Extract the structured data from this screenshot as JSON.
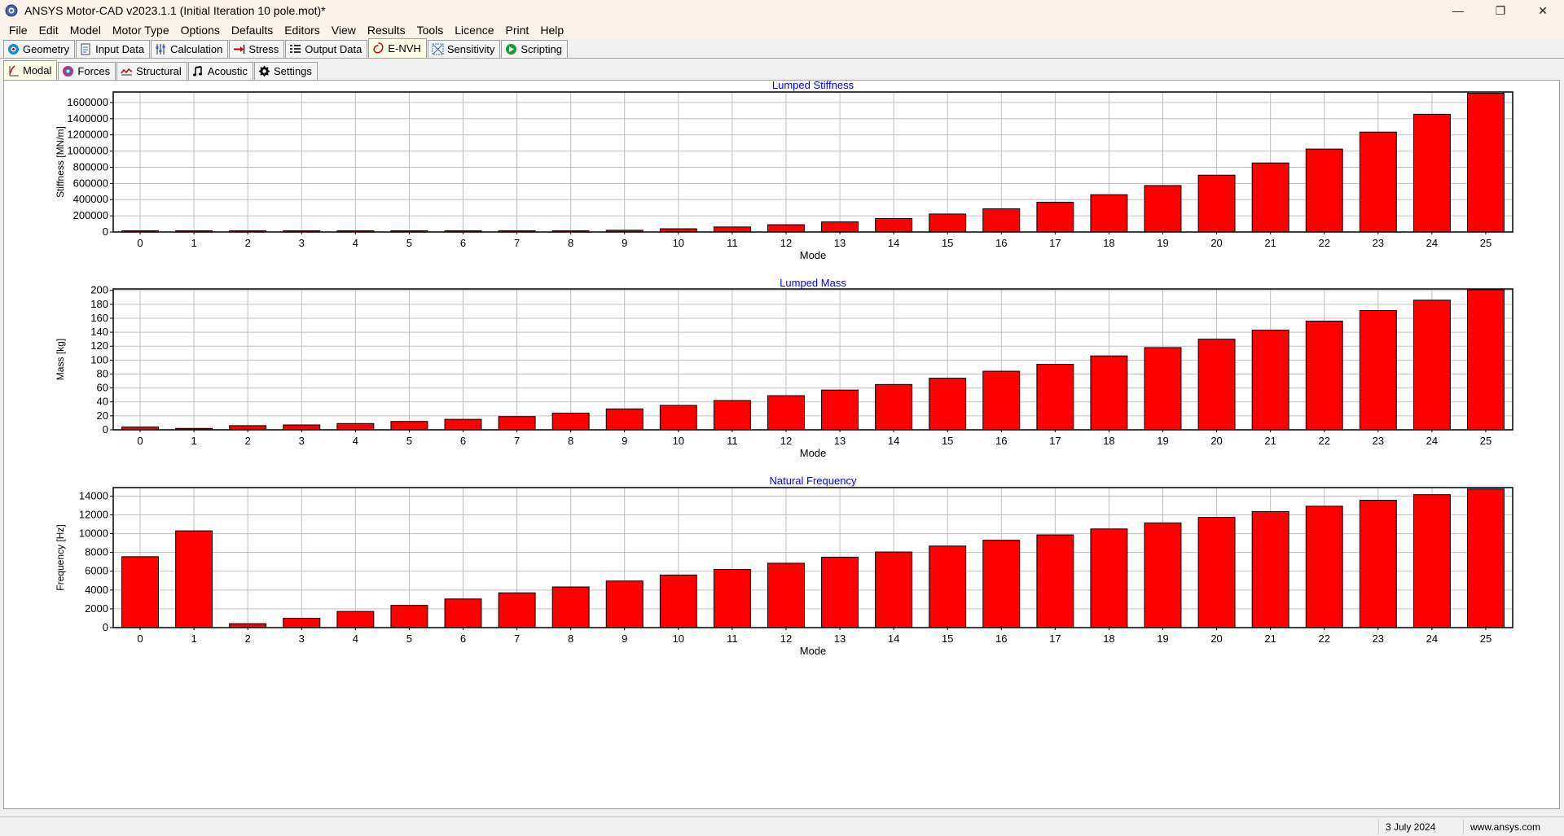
{
  "window": {
    "title": "ANSYS Motor-CAD v2023.1.1 (Initial Iteration 10 pole.mot)*",
    "controls": [
      "—",
      "❐",
      "✕"
    ]
  },
  "menu": [
    {
      "label": "File"
    },
    {
      "label": "Edit"
    },
    {
      "label": "Model"
    },
    {
      "label": "Motor Type"
    },
    {
      "label": "Options"
    },
    {
      "label": "Defaults"
    },
    {
      "label": "Editors"
    },
    {
      "label": "View"
    },
    {
      "label": "Results"
    },
    {
      "label": "Tools"
    },
    {
      "label": "Licence"
    },
    {
      "label": "Print"
    },
    {
      "label": "Help"
    }
  ],
  "main_tabs": [
    {
      "label": "Geometry",
      "icon": "geometry-icon",
      "active": false
    },
    {
      "label": "Input Data",
      "icon": "input-data-icon",
      "active": false
    },
    {
      "label": "Calculation",
      "icon": "calculation-icon",
      "active": false
    },
    {
      "label": "Stress",
      "icon": "stress-icon",
      "active": false
    },
    {
      "label": "Output Data",
      "icon": "output-data-icon",
      "active": false
    },
    {
      "label": "E-NVH",
      "icon": "envh-icon",
      "active": true
    },
    {
      "label": "Sensitivity",
      "icon": "sensitivity-icon",
      "active": false
    },
    {
      "label": "Scripting",
      "icon": "scripting-icon",
      "active": false
    }
  ],
  "sub_tabs": [
    {
      "label": "Modal",
      "icon": "modal-icon",
      "active": true
    },
    {
      "label": "Forces",
      "icon": "forces-icon",
      "active": false
    },
    {
      "label": "Structural",
      "icon": "structural-icon",
      "active": false
    },
    {
      "label": "Acoustic",
      "icon": "acoustic-icon",
      "active": false
    },
    {
      "label": "Settings",
      "icon": "settings-icon",
      "active": false
    }
  ],
  "colors": {
    "bar": "#ff0000",
    "title": "#0000ff",
    "grid": "#c0c0c0"
  },
  "chart_data": [
    {
      "type": "bar",
      "title": "Lumped Stiffness",
      "xlabel": "Mode",
      "ylabel": "Stiffness [MN/m]",
      "categories": [
        "0",
        "1",
        "2",
        "3",
        "4",
        "5",
        "6",
        "7",
        "8",
        "9",
        "10",
        "11",
        "12",
        "13",
        "14",
        "15",
        "16",
        "17",
        "18",
        "19",
        "20",
        "21",
        "22",
        "23",
        "24",
        "25"
      ],
      "values": [
        8000,
        9000,
        3000,
        3000,
        4000,
        5000,
        7000,
        10000,
        14000,
        22000,
        40000,
        62000,
        90000,
        125000,
        167000,
        222000,
        287000,
        368000,
        461000,
        574000,
        702000,
        853000,
        1025000,
        1235000,
        1455000,
        1715000
      ],
      "ylim": [
        0,
        1730000
      ],
      "yticks": [
        0,
        200000,
        400000,
        600000,
        800000,
        1000000,
        1200000,
        1400000,
        1600000
      ],
      "grid": true
    },
    {
      "type": "bar",
      "title": "Lumped Mass",
      "xlabel": "Mode",
      "ylabel": "Mass [kg]",
      "categories": [
        "0",
        "1",
        "2",
        "3",
        "4",
        "5",
        "6",
        "7",
        "8",
        "9",
        "10",
        "11",
        "12",
        "13",
        "14",
        "15",
        "16",
        "17",
        "18",
        "19",
        "20",
        "21",
        "22",
        "23",
        "24",
        "25"
      ],
      "values": [
        4,
        2,
        6,
        7,
        9,
        12,
        15,
        19,
        24,
        30,
        35,
        42,
        49,
        57,
        65,
        74,
        84,
        94,
        106,
        118,
        130,
        143,
        156,
        171,
        186,
        201
      ],
      "ylim": [
        0,
        202
      ],
      "yticks": [
        0,
        20,
        40,
        60,
        80,
        100,
        120,
        140,
        160,
        180,
        200
      ],
      "grid": true
    },
    {
      "type": "bar",
      "title": "Natural Frequency",
      "xlabel": "Mode",
      "ylabel": "Frequency [Hz]",
      "categories": [
        "0",
        "1",
        "2",
        "3",
        "4",
        "5",
        "6",
        "7",
        "8",
        "9",
        "10",
        "11",
        "12",
        "13",
        "14",
        "15",
        "16",
        "17",
        "18",
        "19",
        "20",
        "21",
        "22",
        "23",
        "24",
        "25"
      ],
      "values": [
        7550,
        10300,
        420,
        1000,
        1720,
        2370,
        3050,
        3700,
        4330,
        4960,
        5600,
        6200,
        6850,
        7500,
        8050,
        8680,
        9300,
        9870,
        10500,
        11150,
        11730,
        12350,
        12920,
        13550,
        14150,
        14750
      ],
      "ylim": [
        0,
        14900
      ],
      "yticks": [
        0,
        2000,
        4000,
        6000,
        8000,
        10000,
        12000,
        14000
      ],
      "grid": true
    }
  ],
  "status": {
    "date": "3 July 2024",
    "website": "www.ansys.com"
  }
}
